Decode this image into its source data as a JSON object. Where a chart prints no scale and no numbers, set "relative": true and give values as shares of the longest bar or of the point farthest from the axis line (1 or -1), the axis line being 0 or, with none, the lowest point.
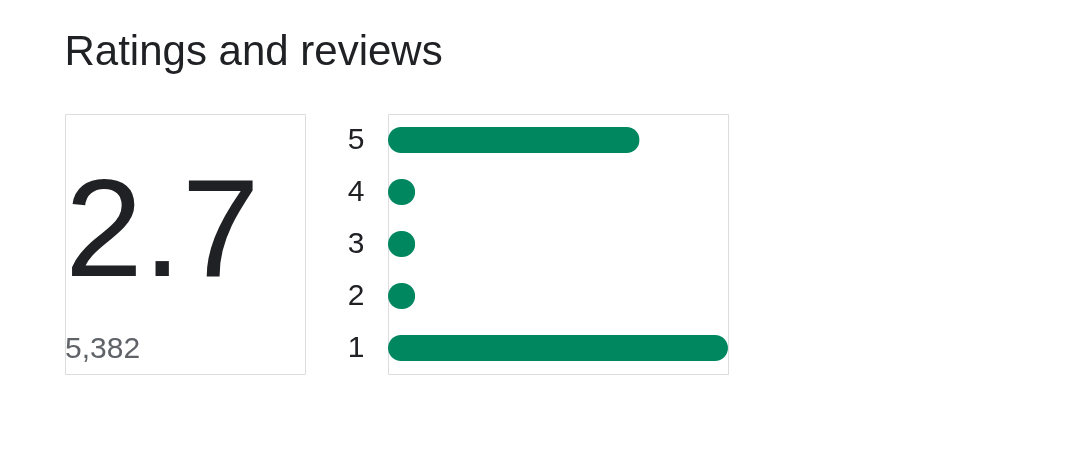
{
  "chart_data": {
    "type": "bar",
    "title": "Ratings and reviews",
    "orientation": "horizontal",
    "relative": true,
    "categories": [
      "5",
      "4",
      "3",
      "2",
      "1"
    ],
    "values": [
      0.74,
      0.08,
      0.08,
      0.08,
      1
    ],
    "color": "#01875f",
    "annotations": [
      "2.7",
      "5,382"
    ]
  }
}
